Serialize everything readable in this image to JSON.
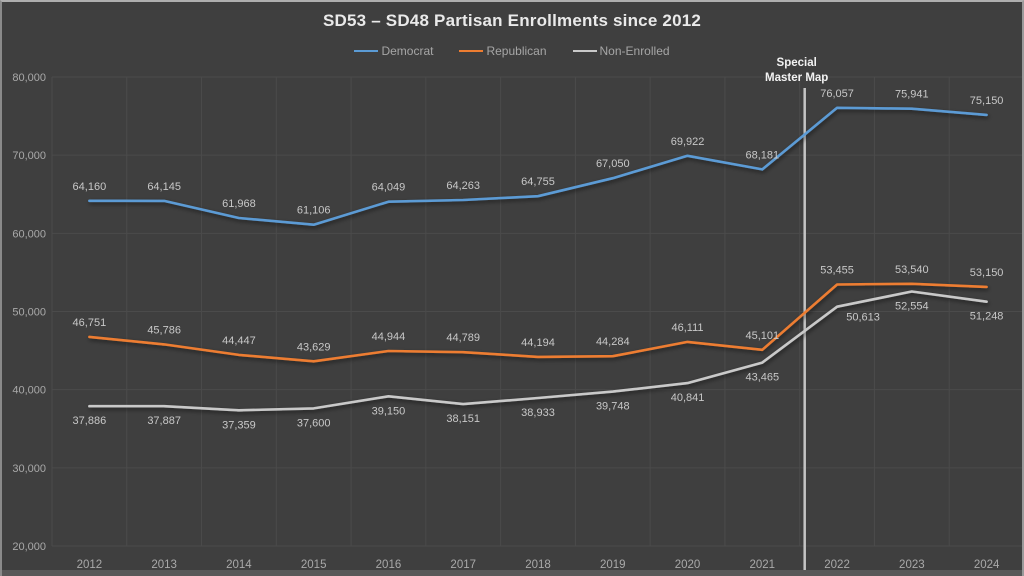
{
  "title": "SD53 – SD48 Partisan Enrollments since 2012",
  "colors": {
    "background": "#3F3F3F",
    "gridline": "#4B4B4B",
    "axis_label": "#A9A9A9",
    "data_label": "#C8C8C8",
    "title_text": "#EAEAEA",
    "legend_text": "#A6A6A6",
    "annotation_text": "#F2F2F2",
    "annotation_line": "#C4C4C4",
    "democrat": "#5B9BD5",
    "republican": "#ED7D31",
    "non_enrolled": "#C9C9C9"
  },
  "chart_data": {
    "type": "line",
    "title": "SD53 – SD48 Partisan Enrollments since 2012",
    "x": [
      "2012",
      "2013",
      "2014",
      "2015",
      "2016",
      "2017",
      "2018",
      "2019",
      "2020",
      "2021",
      "2022",
      "2023",
      "2024"
    ],
    "series": [
      {
        "name": "Democrat",
        "color": "#5B9BD5",
        "label_position": "above",
        "values": [
          64160,
          64145,
          61968,
          61106,
          64049,
          64263,
          64755,
          67050,
          69922,
          68181,
          76057,
          75941,
          75150
        ]
      },
      {
        "name": "Republican",
        "color": "#ED7D31",
        "label_position": "above",
        "values": [
          46751,
          45786,
          44447,
          43629,
          44944,
          44789,
          44194,
          44284,
          46111,
          45101,
          53455,
          53540,
          53150
        ]
      },
      {
        "name": "Non-Enrolled",
        "color": "#C9C9C9",
        "label_position": "below",
        "values": [
          37886,
          37887,
          37359,
          37600,
          39150,
          38151,
          38933,
          39748,
          40841,
          43465,
          50613,
          52554,
          51248
        ],
        "label_offsets": [
          {
            "index": 10,
            "dx": 26,
            "dy": -4
          }
        ]
      }
    ],
    "ylim": [
      20000,
      80000
    ],
    "y_ticks": [
      "80,000",
      "70,000",
      "60,000",
      "50,000",
      "40,000",
      "30,000",
      "20,000"
    ],
    "grid": true,
    "legend_position": "top",
    "annotation": {
      "line1": "Special",
      "line2": "Master Map",
      "after_x": "2021"
    }
  }
}
